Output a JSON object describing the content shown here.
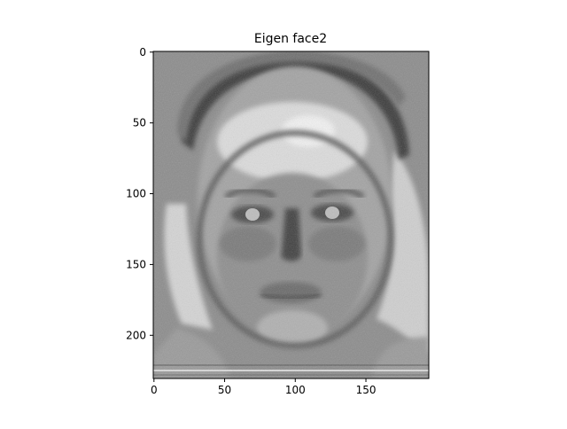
{
  "chart_data": {
    "type": "heatmap",
    "title": "Eigen face2",
    "xlabel": "",
    "ylabel": "",
    "colormap": "gray",
    "grid": false,
    "legend": "none",
    "image_shape": [
      231,
      195
    ],
    "xlim": [
      -0.5,
      194.5
    ],
    "ylim": [
      230.5,
      -0.5
    ],
    "x_ticks": [
      0,
      50,
      100,
      150
    ],
    "y_ticks": [
      0,
      50,
      100,
      150,
      200
    ],
    "x_tick_labels": [
      "0",
      "50",
      "100",
      "150"
    ],
    "y_tick_labels": [
      "0",
      "50",
      "100",
      "150",
      "200"
    ],
    "background_level": 0.55,
    "features": [
      {
        "name": "hair-arc",
        "kind": "dark",
        "level": 0.22
      },
      {
        "name": "forehead",
        "kind": "bright",
        "level": 0.88
      },
      {
        "name": "face",
        "kind": "mid",
        "level": 0.58
      },
      {
        "name": "eyes",
        "kind": "dark",
        "level": 0.3
      },
      {
        "name": "nose",
        "kind": "dark",
        "level": 0.3
      },
      {
        "name": "mouth",
        "kind": "mid",
        "level": 0.5
      },
      {
        "name": "shoulders",
        "kind": "bright",
        "level": 0.8
      }
    ]
  },
  "colors": {
    "axes_edge": "#000000",
    "background": "#ffffff"
  }
}
